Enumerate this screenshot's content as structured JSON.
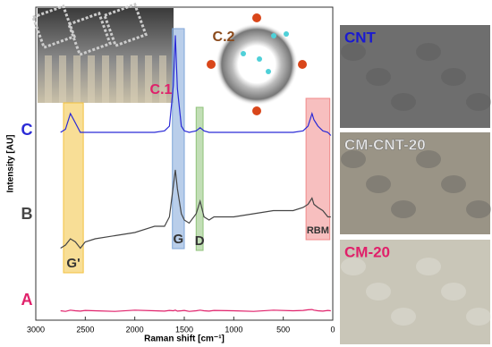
{
  "chart_data": {
    "type": "line",
    "x_label": "Raman shift [cm⁻¹]",
    "y_label": "Intensity [AU]",
    "xlim": [
      3000,
      0
    ],
    "ylim": [
      0,
      100
    ],
    "xticks": [
      3000,
      2500,
      2000,
      1500,
      1000,
      500,
      0
    ],
    "x": [
      2750,
      2700,
      2650,
      2600,
      2550,
      2500,
      2400,
      2200,
      2000,
      1800,
      1700,
      1650,
      1610,
      1590,
      1570,
      1530,
      1500,
      1450,
      1380,
      1340,
      1300,
      1250,
      1200,
      1000,
      800,
      600,
      400,
      300,
      250,
      210,
      190,
      150,
      100,
      50,
      20
    ],
    "series": [
      {
        "name": "C",
        "color": "#2a2ad6",
        "values": [
          60,
          61,
          66,
          63,
          60,
          60,
          60,
          60,
          60,
          60,
          60.5,
          62,
          75,
          91,
          74,
          62,
          60.5,
          60,
          60.5,
          61.5,
          60.5,
          60,
          60,
          60,
          60,
          60,
          60,
          60.5,
          62,
          66,
          64,
          62,
          60.5,
          60,
          59
        ]
      },
      {
        "name": "B",
        "color": "#454545",
        "values": [
          23,
          24,
          26,
          25,
          23,
          25,
          26,
          27,
          28,
          30,
          30,
          33,
          43,
          48,
          42,
          34,
          32,
          31,
          34,
          38,
          33,
          32,
          33,
          33,
          34,
          35,
          35,
          36,
          37,
          39,
          37,
          36,
          35,
          33,
          33
        ]
      },
      {
        "name": "A",
        "color": "#e0206a",
        "values": [
          3,
          2.8,
          3.2,
          3,
          2.9,
          3.1,
          3,
          2.8,
          3.2,
          3,
          2.9,
          3.1,
          3,
          3.2,
          2.9,
          3,
          3.1,
          2.8,
          3,
          3.2,
          3,
          2.9,
          3.1,
          3,
          2.8,
          3.2,
          3,
          3.1,
          3.3,
          3.4,
          3.2,
          3,
          2.9,
          3.1,
          3
        ]
      }
    ],
    "bands": [
      {
        "label": "G'",
        "x": [
          2720,
          2520
        ],
        "color": "#f3c240"
      },
      {
        "label": "G",
        "x": [
          1620,
          1500
        ],
        "color": "#7fa6d8"
      },
      {
        "label": "D",
        "x": [
          1380,
          1310
        ],
        "color": "#8fc27a"
      },
      {
        "label": "RBM",
        "x": [
          270,
          30
        ],
        "color": "#f08a8a"
      }
    ],
    "insets": [
      {
        "label": "C.1",
        "color": "#e0206a"
      },
      {
        "label": "C.2",
        "color": "#8b4a1c"
      }
    ],
    "panels": [
      {
        "label": "CNT",
        "color": "#1a1ad0"
      },
      {
        "label": "CM-CNT-20",
        "color": "#e8e8e8"
      },
      {
        "label": "CM-20",
        "color": "#e0206a"
      }
    ]
  }
}
